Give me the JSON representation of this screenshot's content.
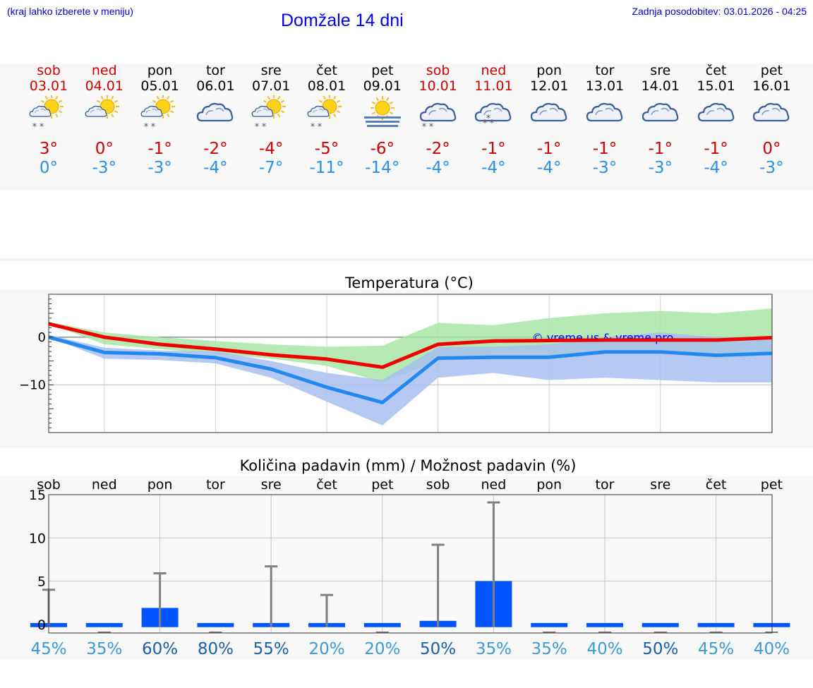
{
  "header": {
    "left_note": "(kraj lahko izberete v meniju)",
    "title": "Domžale 14 dni",
    "updated": "Zadnja posodobitev: 03.01.2026 - 04:25"
  },
  "days": [
    {
      "name": "sob",
      "date": "03.01",
      "weekend": true,
      "icon": "sun-cloud-snow-icon",
      "kind": "suncloud",
      "snow": 2,
      "tmax": "3°",
      "tmin": "0°"
    },
    {
      "name": "ned",
      "date": "04.01",
      "weekend": true,
      "icon": "sun-cloud-icon",
      "kind": "suncloud",
      "snow": 0,
      "tmax": "0°",
      "tmin": "-3°"
    },
    {
      "name": "pon",
      "date": "05.01",
      "weekend": false,
      "icon": "sun-cloud-snow-icon",
      "kind": "suncloud",
      "snow": 2,
      "tmax": "-1°",
      "tmin": "-3°"
    },
    {
      "name": "tor",
      "date": "06.01",
      "weekend": false,
      "icon": "cloud-icon",
      "kind": "cloud",
      "snow": 0,
      "tmax": "-2°",
      "tmin": "-4°"
    },
    {
      "name": "sre",
      "date": "07.01",
      "weekend": false,
      "icon": "sun-cloud-snow-icon",
      "kind": "suncloud",
      "snow": 2,
      "tmax": "-4°",
      "tmin": "-7°"
    },
    {
      "name": "čet",
      "date": "08.01",
      "weekend": false,
      "icon": "sun-cloud-snow-icon",
      "kind": "suncloud",
      "snow": 2,
      "tmax": "-5°",
      "tmin": "-11°"
    },
    {
      "name": "pet",
      "date": "09.01",
      "weekend": false,
      "icon": "sun-fog-icon",
      "kind": "sunfog",
      "snow": 0,
      "tmax": "-6°",
      "tmin": "-14°"
    },
    {
      "name": "sob",
      "date": "10.01",
      "weekend": true,
      "icon": "cloud-snow-icon",
      "kind": "cloud",
      "snow": 2,
      "tmax": "-2°",
      "tmin": "-4°"
    },
    {
      "name": "ned",
      "date": "11.01",
      "weekend": true,
      "icon": "cloud-snow-icon",
      "kind": "cloud",
      "snow": 3,
      "tmax": "-1°",
      "tmin": "-4°"
    },
    {
      "name": "pon",
      "date": "12.01",
      "weekend": false,
      "icon": "cloud-icon",
      "kind": "cloud",
      "snow": 0,
      "tmax": "-1°",
      "tmin": "-4°"
    },
    {
      "name": "tor",
      "date": "13.01",
      "weekend": false,
      "icon": "cloud-icon",
      "kind": "cloud",
      "snow": 0,
      "tmax": "-1°",
      "tmin": "-3°"
    },
    {
      "name": "sre",
      "date": "14.01",
      "weekend": false,
      "icon": "cloud-icon",
      "kind": "cloud",
      "snow": 0,
      "tmax": "-1°",
      "tmin": "-3°"
    },
    {
      "name": "čet",
      "date": "15.01",
      "weekend": false,
      "icon": "cloud-icon",
      "kind": "cloud",
      "snow": 0,
      "tmax": "-1°",
      "tmin": "-4°"
    },
    {
      "name": "pet",
      "date": "16.01",
      "weekend": false,
      "icon": "cloud-icon",
      "kind": "cloud",
      "snow": 0,
      "tmax": "0°",
      "tmin": "-3°"
    }
  ],
  "colors": {
    "weekend": "#cc0000",
    "weekday": "#000000",
    "tmax_line": "#ee0000",
    "tmin_line": "#2288ee",
    "max_band": "#a8e6a8",
    "min_band": "#a8c0f0",
    "overlap_band": "#84c8a8",
    "precip_bar": "#0055ff",
    "err_bar": "#808080"
  },
  "chart_data": [
    {
      "type": "line",
      "title": "Temperatura (°C)",
      "watermark": "© vreme.us & vreme.pro",
      "categories": [
        "03.01",
        "04.01",
        "05.01",
        "06.01",
        "07.01",
        "08.01",
        "09.01",
        "10.01",
        "11.01",
        "12.01",
        "13.01",
        "14.01",
        "15.01",
        "16.01"
      ],
      "ylim": [
        -20,
        9
      ],
      "yticks": [
        0,
        -10
      ],
      "ytick_labels": [
        "0",
        "−10"
      ],
      "grid": true,
      "series": [
        {
          "name": "tmax",
          "values": [
            2.8,
            0,
            -1.5,
            -2.5,
            -3.7,
            -4.6,
            -6.3,
            -1.5,
            -0.8,
            -0.7,
            -0.6,
            -0.6,
            -0.6,
            -0.1
          ],
          "band_low": [
            2.8,
            -1.5,
            -2.5,
            -3.5,
            -4.5,
            -6,
            -9.5,
            -5,
            -4.5,
            -4.5,
            -3.5,
            -3.5,
            -4,
            -3.5
          ],
          "band_high": [
            3.2,
            1,
            0,
            -0.8,
            -1.5,
            -2,
            -1.8,
            3,
            2.5,
            4,
            5,
            5.5,
            5,
            6
          ]
        },
        {
          "name": "tmin",
          "values": [
            0,
            -3.2,
            -3.5,
            -4.3,
            -6.7,
            -10.5,
            -13.7,
            -4.4,
            -4.2,
            -4.2,
            -3.1,
            -3.1,
            -3.8,
            -3.4
          ],
          "band_low": [
            0,
            -4.5,
            -4.8,
            -5.5,
            -8.5,
            -13.5,
            -18.5,
            -8.5,
            -7.5,
            -9,
            -8.5,
            -9,
            -9.5,
            -9.5
          ],
          "band_high": [
            0.5,
            -2.2,
            -2.8,
            -3,
            -5,
            -7.5,
            -9,
            -2,
            -2,
            -1.5,
            0,
            1,
            0,
            0
          ]
        }
      ]
    },
    {
      "type": "bar",
      "title": "Količina padavin (mm) / Možnost padavin (%)",
      "categories": [
        "sob",
        "ned",
        "pon",
        "tor",
        "sre",
        "čet",
        "pet",
        "sob",
        "ned",
        "pon",
        "tor",
        "sre",
        "čet",
        "pet"
      ],
      "ylim": [
        -1,
        15
      ],
      "yticks": [
        0,
        5,
        10,
        15
      ],
      "ytick_labels": [
        "0",
        "5",
        "10",
        "15"
      ],
      "grid": true,
      "values": [
        0.1,
        0,
        1.9,
        0,
        0,
        0.1,
        0,
        0.4,
        5,
        0,
        0,
        0,
        0,
        0
      ],
      "error_high": [
        4,
        0,
        5.9,
        0,
        6.7,
        3.4,
        0,
        9.2,
        14.1,
        0,
        0,
        0,
        0,
        0
      ],
      "probability": [
        "45%",
        "35%",
        "60%",
        "80%",
        "55%",
        "20%",
        "20%",
        "50%",
        "35%",
        "35%",
        "40%",
        "50%",
        "45%",
        "40%"
      ],
      "probability_emphasis": [
        false,
        false,
        true,
        true,
        true,
        false,
        false,
        true,
        false,
        false,
        false,
        true,
        false,
        false
      ]
    }
  ]
}
